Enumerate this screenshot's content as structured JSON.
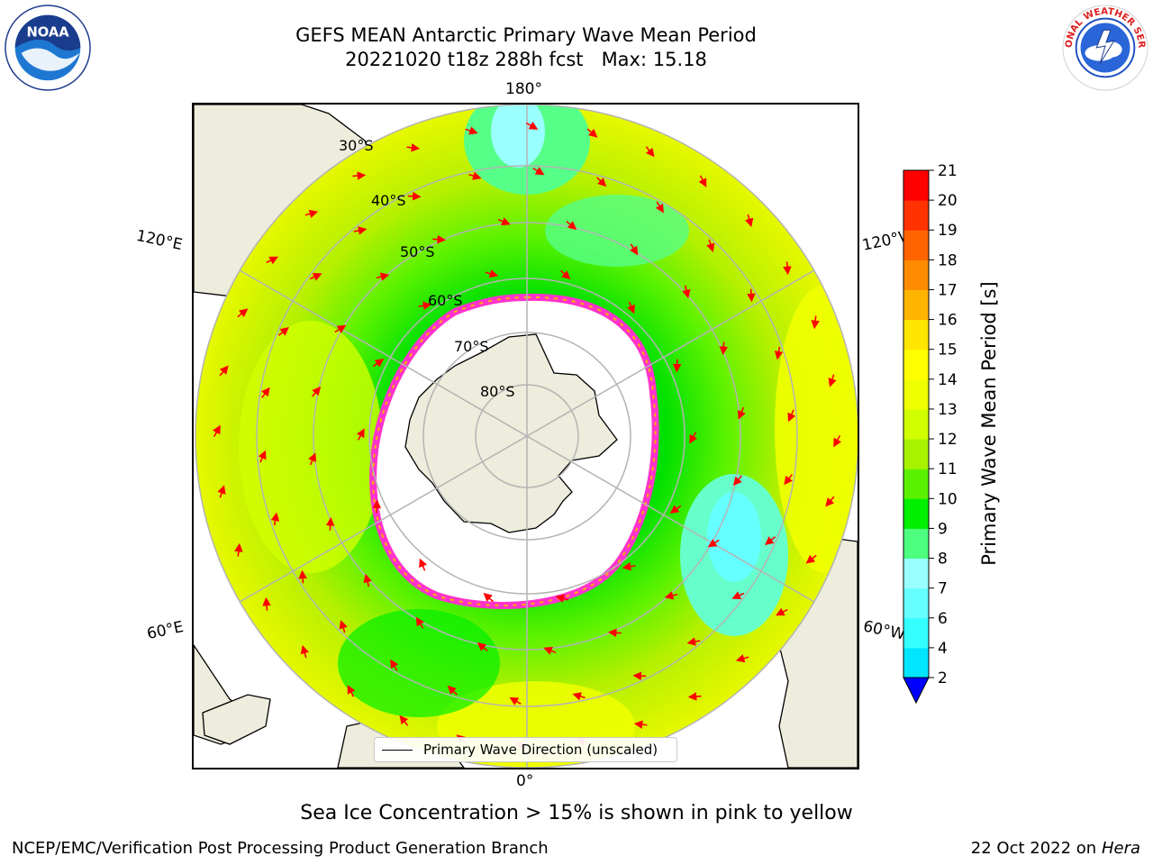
{
  "title": {
    "line1": "GEFS MEAN Antarctic Primary Wave Mean Period",
    "line2": "20221020 t18z 288h fcst   Max: 15.18"
  },
  "map": {
    "projection": "south-polar-stereographic",
    "longitude_labels": {
      "top": "180°",
      "bottom": "0°",
      "upper_left": "120°E",
      "lower_left": "60°E",
      "upper_right": "120°W",
      "lower_right": "60°W"
    },
    "latitude_labels": [
      "30°S",
      "40°S",
      "50°S",
      "60°S",
      "70°S",
      "80°S"
    ],
    "colors": {
      "land": "#eeecdc",
      "sea_ice_open": "#ffffff",
      "grid": "#b4b4b4",
      "arrow": "#ff0000",
      "ice_edge": [
        "#ff33cc",
        "#ffb000"
      ]
    }
  },
  "legend": {
    "label": "Primary Wave Direction (unscaled)"
  },
  "colorbar": {
    "label": "Primary Wave Mean Period [s]",
    "ticks": [
      "2",
      "4",
      "6",
      "7",
      "8",
      "9",
      "10",
      "11",
      "12",
      "13",
      "14",
      "15",
      "16",
      "17",
      "18",
      "19",
      "20",
      "21"
    ],
    "colors": [
      "#0073ff",
      "#00e6ff",
      "#33ffff",
      "#66ffff",
      "#99ffff",
      "#4cff7f",
      "#00f000",
      "#5af200",
      "#a8f200",
      "#d2ff00",
      "#f0ff00",
      "#ffff00",
      "#ffe600",
      "#ffb400",
      "#ff8c00",
      "#ff6400",
      "#ff3200",
      "#ff0000"
    ],
    "underflow_color": "#0000ff"
  },
  "caption": "Sea Ice Concentration > 15% is shown in pink to yellow",
  "footer": {
    "left": "NCEP/EMC/Verification Post Processing Product Generation Branch",
    "right_date": "22 Oct 2022 on ",
    "right_host": "Hera"
  },
  "logos": {
    "left": "NOAA",
    "right": "NATIONAL WEATHER SERVICE"
  }
}
